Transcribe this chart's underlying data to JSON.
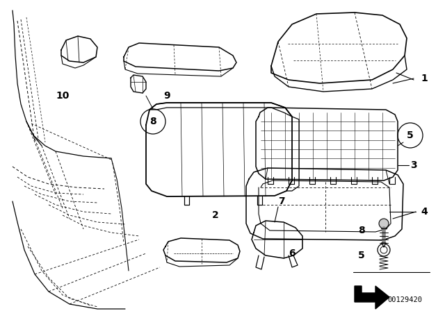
{
  "bg_color": "#ffffff",
  "line_color": "#000000",
  "diagram_num": "00129420",
  "figsize": [
    6.4,
    4.48
  ],
  "dpi": 100
}
